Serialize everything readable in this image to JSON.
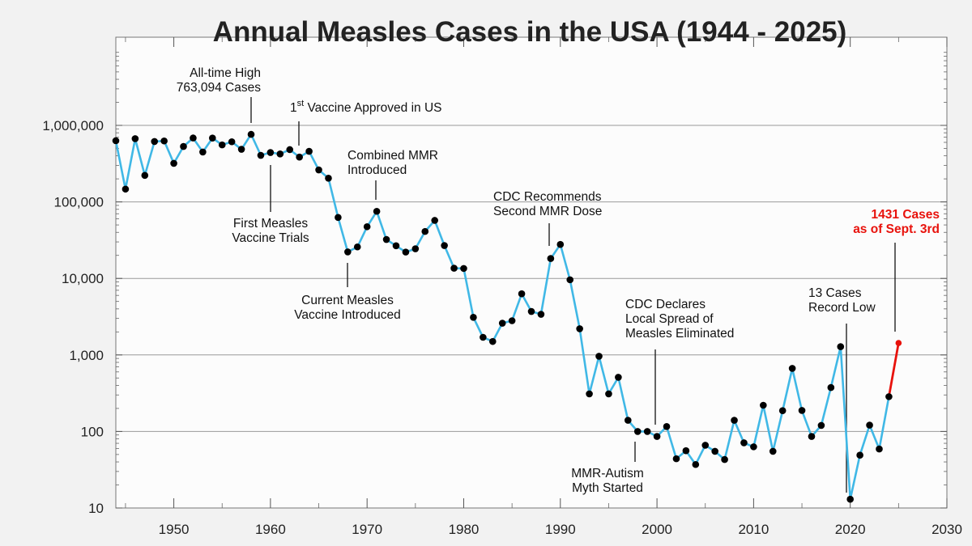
{
  "chart_data": {
    "type": "line",
    "title": "Annual Measles Cases in the USA (1944 - 2025)",
    "xlabel": "",
    "ylabel": "",
    "xlim": [
      1944,
      2030
    ],
    "ylim": [
      10,
      10000000
    ],
    "y_scale": "log",
    "grid": "horizontal major gridlines",
    "x_ticks": [
      "1950",
      "1960",
      "1970",
      "1980",
      "1990",
      "2000",
      "2010",
      "2020",
      "2030"
    ],
    "y_ticks": [
      "10",
      "100",
      "1,000",
      "10,000",
      "100,000",
      "1,000,000"
    ],
    "line_color": "#40b8e6",
    "latest_color": "#e8120c",
    "series": [
      {
        "x": [
          1944,
          1945,
          1946,
          1947,
          1948,
          1949,
          1950,
          1951,
          1952,
          1953,
          1954,
          1955,
          1956,
          1957,
          1958,
          1959,
          1960,
          1961,
          1962,
          1963,
          1964,
          1965,
          1966,
          1967,
          1968,
          1969,
          1970,
          1971,
          1972,
          1973,
          1974,
          1975,
          1976,
          1977,
          1978,
          1979,
          1980,
          1981,
          1982,
          1983,
          1984,
          1985,
          1986,
          1987,
          1988,
          1989,
          1990,
          1991,
          1992,
          1993,
          1994,
          1995,
          1996,
          1997,
          1998,
          1999,
          2000,
          2001,
          2002,
          2003,
          2004,
          2005,
          2006,
          2007,
          2008,
          2009,
          2010,
          2011,
          2012,
          2013,
          2014,
          2015,
          2016,
          2017,
          2018,
          2019,
          2020,
          2021,
          2022,
          2023,
          2024
        ],
        "values": [
          630000,
          147000,
          670000,
          222000,
          615000,
          626000,
          319000,
          530000,
          684000,
          449000,
          683000,
          556000,
          611000,
          487000,
          763094,
          406000,
          442000,
          423000,
          482000,
          385000,
          458000,
          262000,
          204000,
          62700,
          22200,
          25800,
          47400,
          75300,
          32300,
          26700,
          22100,
          24400,
          41100,
          57300,
          26900,
          13600,
          13500,
          3100,
          1700,
          1500,
          2600,
          2800,
          6300,
          3700,
          3400,
          18200,
          27800,
          9600,
          2200,
          310,
          960,
          310,
          510,
          140,
          100,
          100,
          86,
          116,
          44,
          56,
          37,
          66,
          55,
          43,
          140,
          71,
          63,
          220,
          55,
          187,
          667,
          188,
          86,
          120,
          375,
          1282,
          13,
          49,
          121,
          59,
          285
        ]
      },
      {
        "x": [
          2024,
          2025
        ],
        "values": [
          285,
          1431
        ]
      }
    ],
    "annotations": [
      {
        "lines": [
          "All-time High",
          "763,094 Cases"
        ],
        "year": 1958
      },
      {
        "lines": [
          "1",
          "st",
          "Vaccine  Approved  in  US"
        ],
        "year": 1963
      },
      {
        "lines": [
          "Combined MMR",
          "Introduced"
        ],
        "year": 1971
      },
      {
        "lines": [
          "First Measles",
          "Vaccine Trials"
        ],
        "year": 1960
      },
      {
        "lines": [
          "Current Measles",
          "Vaccine Introduced"
        ],
        "year": 1968
      },
      {
        "lines": [
          "CDC Recommends",
          "Second MMR Dose"
        ],
        "year": 1989
      },
      {
        "lines": [
          "CDC Declares",
          "Local Spread of",
          "Measles Eliminated"
        ],
        "year": 2000
      },
      {
        "lines": [
          "MMR-Autism",
          "Myth Started"
        ],
        "year": 1998
      },
      {
        "lines": [
          "13 Cases",
          "Record Low"
        ],
        "year": 2020
      },
      {
        "lines": [
          "1431 Cases",
          "as of Sept. 3rd"
        ],
        "year": 2025
      }
    ]
  }
}
